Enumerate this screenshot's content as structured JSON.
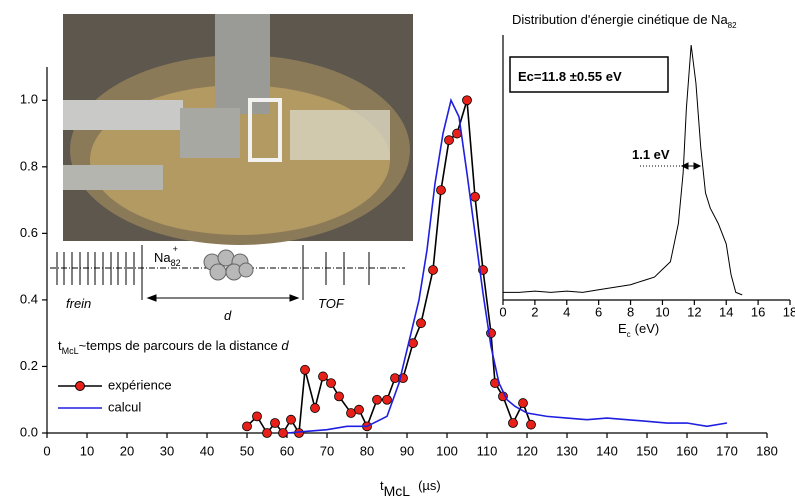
{
  "chart_data": [
    {
      "type": "line",
      "xlabel": {
        "main": "t",
        "sub": "McL",
        "unit": "(µs)"
      },
      "xlim": [
        0,
        180
      ],
      "xticks": [
        0,
        10,
        20,
        30,
        40,
        50,
        60,
        70,
        80,
        90,
        100,
        110,
        120,
        130,
        140,
        150,
        160,
        170,
        180
      ],
      "ylim": [
        0,
        1.1
      ],
      "yticks": [
        {
          "value": 0,
          "label": "0.0"
        },
        0.2,
        0.4,
        0.6,
        0.8,
        {
          "value": 1,
          "label": "1.0"
        }
      ],
      "legend": "lower left",
      "series": [
        {
          "name": "expérience",
          "color": "#000000",
          "marker_color": "#e8201a",
          "x": [
            50,
            52.5,
            55,
            57,
            59,
            61,
            63,
            64.5,
            67,
            69,
            71,
            73,
            76,
            78,
            80,
            82.5,
            85,
            87,
            89,
            91.5,
            93.5,
            96.5,
            98.5,
            100.5,
            102.5,
            105,
            107,
            109,
            111,
            112,
            114,
            116.5,
            119,
            121
          ],
          "values": [
            0.02,
            0.05,
            0.0,
            0.03,
            0.0,
            0.04,
            0.0,
            0.19,
            0.075,
            0.17,
            0.15,
            0.11,
            0.06,
            0.07,
            0.02,
            0.1,
            0.1,
            0.165,
            0.165,
            0.27,
            0.33,
            0.49,
            0.73,
            0.88,
            0.9,
            1.0,
            0.71,
            0.49,
            0.3,
            0.15,
            0.11,
            0.03,
            0.09,
            0.025
          ]
        },
        {
          "name": "calcul",
          "color": "#1f1fe0",
          "x": [
            60,
            65,
            70,
            75,
            80,
            85,
            88,
            90,
            93,
            95,
            97,
            99,
            101,
            103,
            105,
            107,
            109,
            111,
            113,
            115,
            117,
            120,
            125,
            130,
            135,
            140,
            145,
            150,
            155,
            160,
            165,
            170
          ],
          "values": [
            0.0,
            0.005,
            0.01,
            0.02,
            0.02,
            0.05,
            0.15,
            0.25,
            0.4,
            0.55,
            0.75,
            0.9,
            1.0,
            0.95,
            0.78,
            0.6,
            0.42,
            0.26,
            0.15,
            0.1,
            0.08,
            0.06,
            0.05,
            0.045,
            0.04,
            0.045,
            0.04,
            0.035,
            0.03,
            0.03,
            0.02,
            0.03
          ]
        }
      ],
      "annotation": [
        "t",
        "McL",
        "~temps de parcours de la distance ",
        "d"
      ],
      "diagram": {
        "ion": [
          "Na",
          "82",
          "+"
        ],
        "labels": [
          "frein",
          "d",
          "TOF"
        ]
      }
    },
    {
      "type": "line",
      "title": [
        "Distribution d'énergie cinétique de Na",
        "82"
      ],
      "annotations": [
        "Ec=11.8 ±0.55 eV",
        "1.1 eV"
      ],
      "xlabel": [
        "E",
        "c",
        "(eV)"
      ],
      "xlim": [
        0,
        18
      ],
      "xticks": [
        0,
        2,
        4,
        6,
        8,
        10,
        12,
        14,
        16,
        18
      ],
      "ylim": [
        0,
        1
      ],
      "series": [
        {
          "color": "#000000",
          "x": [
            0,
            1,
            2,
            3,
            4,
            5,
            6,
            7,
            8,
            9,
            9.5,
            10,
            10.5,
            11,
            11.3,
            11.5,
            11.8,
            12.1,
            12.4,
            12.7,
            13,
            13.5,
            14,
            14.3,
            14.6,
            15
          ],
          "values": [
            0.03,
            0.03,
            0.035,
            0.03,
            0.035,
            0.03,
            0.04,
            0.05,
            0.06,
            0.08,
            0.09,
            0.12,
            0.15,
            0.3,
            0.5,
            0.75,
            1.0,
            0.85,
            0.6,
            0.42,
            0.36,
            0.3,
            0.22,
            0.1,
            0.03,
            0.02
          ]
        }
      ]
    }
  ]
}
